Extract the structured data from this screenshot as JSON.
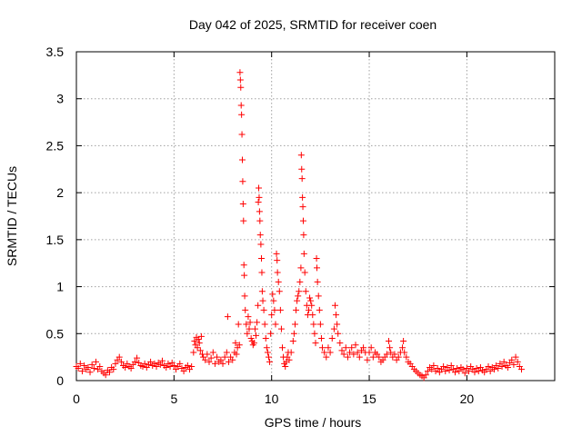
{
  "chart_data": {
    "type": "scatter",
    "title": "Day 042 of 2025, SRMTID for receiver coen",
    "xlabel": "GPS time / hours",
    "ylabel": "SRMTID / TECUs",
    "xlim": [
      0,
      24.5
    ],
    "ylim": [
      0,
      3.5
    ],
    "grid": true,
    "marker": "+",
    "marker_color": "#ff0000",
    "x_ticks": [
      0,
      5,
      10,
      15,
      20
    ],
    "x_tick_labels": [
      "0",
      "5",
      "10",
      "15",
      "20"
    ],
    "y_ticks": [
      0,
      0.5,
      1,
      1.5,
      2,
      2.5,
      3,
      3.5
    ],
    "y_tick_labels": [
      "0",
      "0.5",
      "1",
      "1.5",
      "2",
      "2.5",
      "3",
      "3.5"
    ],
    "series": [
      {
        "name": "SRMTID",
        "points": [
          [
            0.0,
            0.15
          ],
          [
            0.1,
            0.13
          ],
          [
            0.2,
            0.18
          ],
          [
            0.3,
            0.1
          ],
          [
            0.4,
            0.16
          ],
          [
            0.5,
            0.12
          ],
          [
            0.6,
            0.14
          ],
          [
            0.7,
            0.09
          ],
          [
            0.8,
            0.17
          ],
          [
            0.9,
            0.13
          ],
          [
            1.0,
            0.2
          ],
          [
            1.1,
            0.12
          ],
          [
            1.2,
            0.15
          ],
          [
            1.3,
            0.1
          ],
          [
            1.4,
            0.08
          ],
          [
            1.5,
            0.06
          ],
          [
            1.6,
            0.11
          ],
          [
            1.7,
            0.09
          ],
          [
            1.8,
            0.14
          ],
          [
            1.9,
            0.12
          ],
          [
            2.0,
            0.18
          ],
          [
            2.1,
            0.22
          ],
          [
            2.2,
            0.25
          ],
          [
            2.3,
            0.2
          ],
          [
            2.4,
            0.16
          ],
          [
            2.5,
            0.14
          ],
          [
            2.6,
            0.18
          ],
          [
            2.7,
            0.15
          ],
          [
            2.8,
            0.13
          ],
          [
            2.9,
            0.17
          ],
          [
            3.0,
            0.2
          ],
          [
            3.1,
            0.24
          ],
          [
            3.2,
            0.19
          ],
          [
            3.3,
            0.16
          ],
          [
            3.4,
            0.15
          ],
          [
            3.5,
            0.18
          ],
          [
            3.6,
            0.14
          ],
          [
            3.7,
            0.17
          ],
          [
            3.8,
            0.2
          ],
          [
            3.9,
            0.16
          ],
          [
            4.0,
            0.18
          ],
          [
            4.1,
            0.15
          ],
          [
            4.2,
            0.19
          ],
          [
            4.3,
            0.17
          ],
          [
            4.4,
            0.21
          ],
          [
            4.5,
            0.16
          ],
          [
            4.6,
            0.14
          ],
          [
            4.7,
            0.18
          ],
          [
            4.8,
            0.15
          ],
          [
            4.9,
            0.19
          ],
          [
            5.0,
            0.16
          ],
          [
            5.1,
            0.12
          ],
          [
            5.2,
            0.15
          ],
          [
            5.3,
            0.18
          ],
          [
            5.4,
            0.13
          ],
          [
            5.5,
            0.1
          ],
          [
            5.6,
            0.14
          ],
          [
            5.7,
            0.16
          ],
          [
            5.8,
            0.12
          ],
          [
            5.9,
            0.15
          ],
          [
            6.0,
            0.3
          ],
          [
            6.05,
            0.42
          ],
          [
            6.1,
            0.38
          ],
          [
            6.15,
            0.46
          ],
          [
            6.2,
            0.35
          ],
          [
            6.25,
            0.44
          ],
          [
            6.3,
            0.4
          ],
          [
            6.35,
            0.32
          ],
          [
            6.4,
            0.47
          ],
          [
            6.45,
            0.28
          ],
          [
            6.5,
            0.25
          ],
          [
            6.6,
            0.22
          ],
          [
            6.7,
            0.28
          ],
          [
            6.8,
            0.2
          ],
          [
            6.9,
            0.24
          ],
          [
            7.0,
            0.3
          ],
          [
            7.1,
            0.18
          ],
          [
            7.2,
            0.25
          ],
          [
            7.3,
            0.2
          ],
          [
            7.4,
            0.22
          ],
          [
            7.5,
            0.18
          ],
          [
            7.6,
            0.25
          ],
          [
            7.7,
            0.3
          ],
          [
            7.75,
            0.68
          ],
          [
            7.8,
            0.2
          ],
          [
            7.9,
            0.25
          ],
          [
            8.0,
            0.22
          ],
          [
            8.1,
            0.3
          ],
          [
            8.15,
            0.4
          ],
          [
            8.2,
            0.28
          ],
          [
            8.25,
            0.35
          ],
          [
            8.3,
            0.6
          ],
          [
            8.35,
            0.38
          ],
          [
            8.38,
            3.28
          ],
          [
            8.4,
            3.2
          ],
          [
            8.42,
            3.12
          ],
          [
            8.44,
            2.93
          ],
          [
            8.46,
            2.83
          ],
          [
            8.48,
            2.62
          ],
          [
            8.5,
            2.35
          ],
          [
            8.52,
            2.12
          ],
          [
            8.54,
            1.88
          ],
          [
            8.56,
            1.7
          ],
          [
            8.58,
            1.23
          ],
          [
            8.6,
            1.12
          ],
          [
            8.62,
            0.9
          ],
          [
            8.65,
            0.75
          ],
          [
            8.7,
            0.6
          ],
          [
            8.75,
            0.5
          ],
          [
            8.8,
            0.68
          ],
          [
            8.85,
            0.55
          ],
          [
            8.9,
            0.62
          ],
          [
            8.95,
            0.45
          ],
          [
            9.0,
            0.42
          ],
          [
            9.05,
            0.38
          ],
          [
            9.1,
            0.4
          ],
          [
            9.15,
            0.55
          ],
          [
            9.2,
            0.48
          ],
          [
            9.25,
            0.62
          ],
          [
            9.3,
            0.8
          ],
          [
            9.32,
            1.9
          ],
          [
            9.34,
            2.05
          ],
          [
            9.36,
            1.95
          ],
          [
            9.38,
            1.8
          ],
          [
            9.4,
            1.7
          ],
          [
            9.42,
            1.55
          ],
          [
            9.45,
            1.45
          ],
          [
            9.48,
            1.3
          ],
          [
            9.5,
            1.15
          ],
          [
            9.52,
            0.95
          ],
          [
            9.55,
            0.85
          ],
          [
            9.6,
            0.75
          ],
          [
            9.65,
            0.6
          ],
          [
            9.7,
            0.45
          ],
          [
            9.75,
            0.35
          ],
          [
            9.8,
            0.3
          ],
          [
            9.85,
            0.25
          ],
          [
            9.9,
            0.2
          ],
          [
            9.95,
            0.5
          ],
          [
            10.0,
            0.7
          ],
          [
            10.05,
            0.92
          ],
          [
            10.1,
            0.85
          ],
          [
            10.15,
            0.75
          ],
          [
            10.2,
            0.6
          ],
          [
            10.25,
            1.35
          ],
          [
            10.28,
            1.28
          ],
          [
            10.3,
            1.15
          ],
          [
            10.35,
            1.05
          ],
          [
            10.4,
            0.95
          ],
          [
            10.45,
            0.75
          ],
          [
            10.5,
            0.55
          ],
          [
            10.55,
            0.35
          ],
          [
            10.6,
            0.25
          ],
          [
            10.65,
            0.18
          ],
          [
            10.7,
            0.15
          ],
          [
            10.75,
            0.2
          ],
          [
            10.8,
            0.25
          ],
          [
            10.85,
            0.3
          ],
          [
            10.9,
            0.22
          ],
          [
            11.0,
            0.3
          ],
          [
            11.1,
            0.42
          ],
          [
            11.15,
            0.5
          ],
          [
            11.2,
            0.6
          ],
          [
            11.25,
            0.75
          ],
          [
            11.3,
            0.85
          ],
          [
            11.35,
            0.9
          ],
          [
            11.4,
            0.95
          ],
          [
            11.45,
            1.05
          ],
          [
            11.5,
            1.2
          ],
          [
            11.52,
            2.4
          ],
          [
            11.54,
            2.25
          ],
          [
            11.56,
            2.15
          ],
          [
            11.58,
            1.95
          ],
          [
            11.6,
            1.85
          ],
          [
            11.62,
            1.7
          ],
          [
            11.64,
            1.55
          ],
          [
            11.66,
            1.35
          ],
          [
            11.7,
            1.15
          ],
          [
            11.75,
            0.95
          ],
          [
            11.8,
            0.8
          ],
          [
            11.85,
            0.7
          ],
          [
            11.9,
            0.75
          ],
          [
            11.95,
            0.88
          ],
          [
            12.0,
            0.85
          ],
          [
            12.05,
            0.8
          ],
          [
            12.1,
            0.7
          ],
          [
            12.15,
            0.6
          ],
          [
            12.2,
            0.5
          ],
          [
            12.25,
            0.4
          ],
          [
            12.3,
            1.3
          ],
          [
            12.32,
            1.2
          ],
          [
            12.35,
            1.05
          ],
          [
            12.4,
            0.9
          ],
          [
            12.45,
            0.75
          ],
          [
            12.5,
            0.6
          ],
          [
            12.55,
            0.45
          ],
          [
            12.6,
            0.35
          ],
          [
            12.7,
            0.3
          ],
          [
            12.8,
            0.25
          ],
          [
            12.9,
            0.35
          ],
          [
            13.0,
            0.3
          ],
          [
            13.1,
            0.45
          ],
          [
            13.2,
            0.55
          ],
          [
            13.25,
            0.8
          ],
          [
            13.3,
            0.7
          ],
          [
            13.35,
            0.6
          ],
          [
            13.4,
            0.5
          ],
          [
            13.5,
            0.4
          ],
          [
            13.6,
            0.32
          ],
          [
            13.7,
            0.28
          ],
          [
            13.8,
            0.35
          ],
          [
            13.9,
            0.25
          ],
          [
            14.0,
            0.3
          ],
          [
            14.1,
            0.35
          ],
          [
            14.2,
            0.28
          ],
          [
            14.3,
            0.38
          ],
          [
            14.4,
            0.3
          ],
          [
            14.5,
            0.25
          ],
          [
            14.6,
            0.32
          ],
          [
            14.7,
            0.35
          ],
          [
            14.8,
            0.3
          ],
          [
            14.9,
            0.22
          ],
          [
            15.0,
            0.3
          ],
          [
            15.1,
            0.35
          ],
          [
            15.2,
            0.25
          ],
          [
            15.3,
            0.3
          ],
          [
            15.4,
            0.28
          ],
          [
            15.5,
            0.25
          ],
          [
            15.6,
            0.2
          ],
          [
            15.7,
            0.22
          ],
          [
            15.8,
            0.25
          ],
          [
            15.9,
            0.28
          ],
          [
            16.0,
            0.42
          ],
          [
            16.05,
            0.35
          ],
          [
            16.1,
            0.3
          ],
          [
            16.2,
            0.25
          ],
          [
            16.3,
            0.28
          ],
          [
            16.4,
            0.22
          ],
          [
            16.5,
            0.25
          ],
          [
            16.6,
            0.3
          ],
          [
            16.7,
            0.35
          ],
          [
            16.75,
            0.42
          ],
          [
            16.8,
            0.3
          ],
          [
            16.9,
            0.25
          ],
          [
            17.0,
            0.2
          ],
          [
            17.1,
            0.18
          ],
          [
            17.2,
            0.15
          ],
          [
            17.3,
            0.12
          ],
          [
            17.4,
            0.1
          ],
          [
            17.5,
            0.08
          ],
          [
            17.6,
            0.06
          ],
          [
            17.7,
            0.05
          ],
          [
            17.8,
            0.03
          ],
          [
            17.9,
            0.06
          ],
          [
            18.0,
            0.1
          ],
          [
            18.1,
            0.14
          ],
          [
            18.2,
            0.12
          ],
          [
            18.3,
            0.16
          ],
          [
            18.4,
            0.1
          ],
          [
            18.5,
            0.13
          ],
          [
            18.6,
            0.09
          ],
          [
            18.7,
            0.12
          ],
          [
            18.8,
            0.15
          ],
          [
            18.9,
            0.1
          ],
          [
            19.0,
            0.14
          ],
          [
            19.1,
            0.11
          ],
          [
            19.2,
            0.16
          ],
          [
            19.3,
            0.12
          ],
          [
            19.4,
            0.09
          ],
          [
            19.5,
            0.13
          ],
          [
            19.6,
            0.1
          ],
          [
            19.7,
            0.14
          ],
          [
            19.8,
            0.12
          ],
          [
            19.9,
            0.08
          ],
          [
            20.0,
            0.13
          ],
          [
            20.1,
            0.1
          ],
          [
            20.2,
            0.15
          ],
          [
            20.3,
            0.12
          ],
          [
            20.4,
            0.09
          ],
          [
            20.5,
            0.13
          ],
          [
            20.6,
            0.1
          ],
          [
            20.7,
            0.14
          ],
          [
            20.8,
            0.11
          ],
          [
            20.9,
            0.09
          ],
          [
            21.0,
            0.12
          ],
          [
            21.1,
            0.15
          ],
          [
            21.2,
            0.1
          ],
          [
            21.3,
            0.14
          ],
          [
            21.4,
            0.12
          ],
          [
            21.5,
            0.16
          ],
          [
            21.6,
            0.13
          ],
          [
            21.7,
            0.18
          ],
          [
            21.8,
            0.15
          ],
          [
            21.9,
            0.2
          ],
          [
            22.0,
            0.16
          ],
          [
            22.1,
            0.14
          ],
          [
            22.2,
            0.19
          ],
          [
            22.3,
            0.22
          ],
          [
            22.4,
            0.17
          ],
          [
            22.5,
            0.25
          ],
          [
            22.6,
            0.2
          ],
          [
            22.7,
            0.15
          ],
          [
            22.8,
            0.12
          ]
        ]
      }
    ]
  }
}
